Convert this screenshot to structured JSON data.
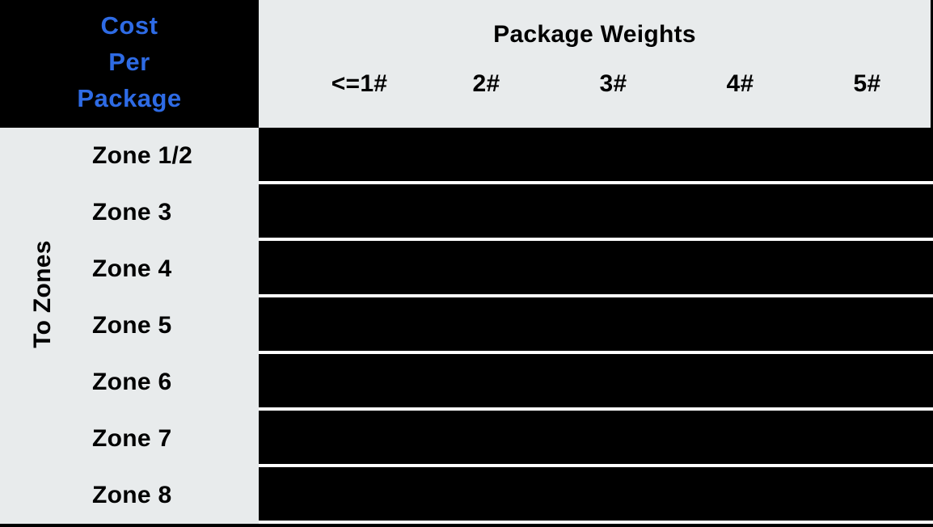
{
  "colors": {
    "accent_blue": "#2e6be5",
    "header_gray": "#e8ebec",
    "cell_black": "#000000",
    "separator_white": "#ffffff"
  },
  "table": {
    "corner_header": {
      "lines": [
        "Cost",
        "Per",
        "Package"
      ]
    },
    "weights_header": {
      "title": "Package Weights",
      "columns": [
        "<=1#",
        "2#",
        "3#",
        "4#",
        "5#"
      ]
    },
    "zones_axis_label": "To Zones",
    "rows": [
      {
        "zone": "Zone 1/2",
        "values": [
          "",
          "",
          "",
          "",
          ""
        ]
      },
      {
        "zone": "Zone 3",
        "values": [
          "",
          "",
          "",
          "",
          ""
        ]
      },
      {
        "zone": "Zone 4",
        "values": [
          "",
          "",
          "",
          "",
          ""
        ]
      },
      {
        "zone": "Zone 5",
        "values": [
          "",
          "",
          "",
          "",
          ""
        ]
      },
      {
        "zone": "Zone 6",
        "values": [
          "",
          "",
          "",
          "",
          ""
        ]
      },
      {
        "zone": "Zone 7",
        "values": [
          "",
          "",
          "",
          "",
          ""
        ]
      },
      {
        "zone": "Zone 8",
        "values": [
          "",
          "",
          "",
          "",
          ""
        ]
      }
    ]
  }
}
